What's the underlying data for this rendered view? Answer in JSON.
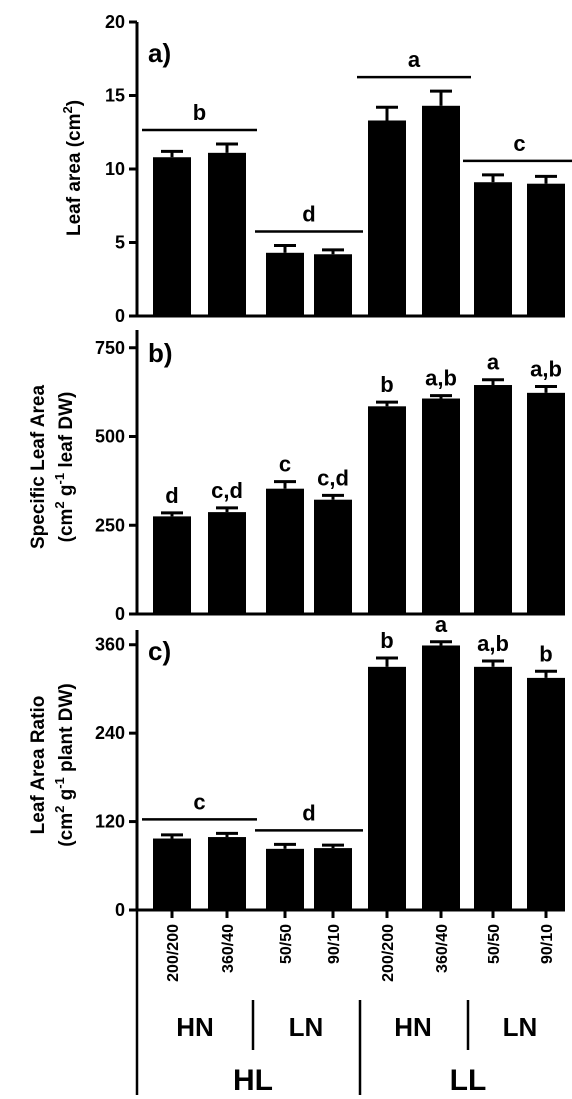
{
  "chart_data": [
    {
      "type": "bar",
      "panel_letter": "a)",
      "ylabel_parts": [
        "Leaf area (cm",
        "2",
        ")"
      ],
      "ylim": [
        0,
        20
      ],
      "yticks": [
        "0",
        "5",
        "10",
        "15",
        "20"
      ],
      "categories": [
        "200/200",
        "360/40",
        "50/50",
        "90/10",
        "200/200",
        "360/40",
        "50/50",
        "90/10"
      ],
      "values": [
        10.8,
        11.1,
        4.3,
        4.2,
        13.3,
        14.3,
        9.1,
        9.0
      ],
      "errors": [
        0.4,
        0.6,
        0.5,
        0.3,
        0.9,
        1.0,
        0.5,
        0.5
      ],
      "significance": [
        "b",
        "d",
        "a",
        "c"
      ],
      "significance_mode": "paired"
    },
    {
      "type": "bar",
      "panel_letter": "b)",
      "ylabel_line1": "Specific Leaf Area",
      "ylabel_parts": [
        "(cm",
        "2",
        " g",
        "-1",
        " leaf DW)"
      ],
      "ylim": [
        0,
        800
      ],
      "yticks": [
        "0",
        "250",
        "500",
        "750"
      ],
      "categories": [
        "200/200",
        "360/40",
        "50/50",
        "90/10",
        "200/200",
        "360/40",
        "50/50",
        "90/10"
      ],
      "values": [
        275,
        287,
        353,
        322,
        585,
        607,
        645,
        623
      ],
      "errors": [
        10,
        12,
        20,
        12,
        12,
        8,
        15,
        18
      ],
      "significance": [
        "d",
        "c,d",
        "c",
        "c,d",
        "b",
        "a,b",
        "a",
        "a,b"
      ],
      "significance_mode": "per-bar"
    },
    {
      "type": "bar",
      "panel_letter": "c)",
      "ylabel_line1": "Leaf Area Ratio",
      "ylabel_parts": [
        "(cm",
        "2",
        " g",
        "-1",
        " plant DW)"
      ],
      "ylim": [
        0,
        380
      ],
      "yticks": [
        "0",
        "120",
        "240",
        "360"
      ],
      "categories": [
        "200/200",
        "360/40",
        "50/50",
        "90/10",
        "200/200",
        "360/40",
        "50/50",
        "90/10"
      ],
      "values": [
        97,
        99,
        83,
        84,
        330,
        359,
        330,
        315
      ],
      "errors": [
        5,
        5,
        6,
        4,
        12,
        5,
        8,
        9
      ],
      "significance": [
        "c",
        "d",
        "b",
        "a",
        "a,b",
        "b"
      ],
      "significance_mode": "mixed"
    }
  ],
  "x_groups": {
    "nitrogen": [
      "HN",
      "LN",
      "HN",
      "LN"
    ],
    "light": [
      "HL",
      "LL"
    ]
  }
}
